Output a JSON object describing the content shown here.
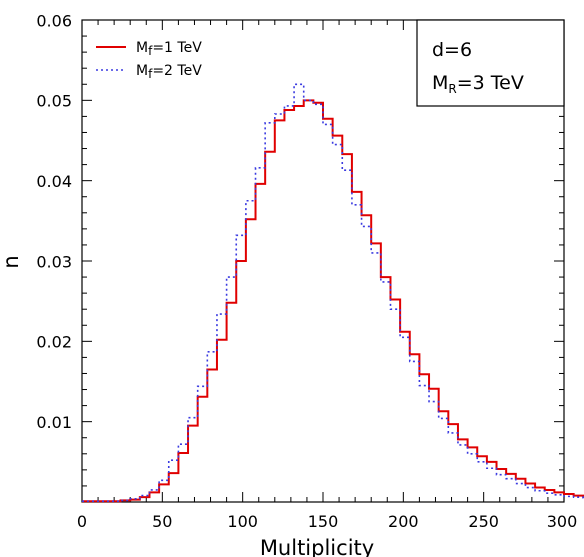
{
  "chart_data": {
    "type": "step-line",
    "xlabel": "Multiplicity",
    "ylabel": "n",
    "xlim": [
      0,
      300
    ],
    "ylim": [
      0,
      0.06
    ],
    "x_ticks": [
      "0",
      "50",
      "100",
      "150",
      "200",
      "250",
      "300"
    ],
    "y_ticks": [
      "0.01",
      "0.02",
      "0.03",
      "0.04",
      "0.05",
      "0.06"
    ],
    "bin_width": 6,
    "bin_edges_start": 0,
    "legend_position": "top-left",
    "info_box": {
      "position": "top-right",
      "line1": "d=6",
      "line2_main": "M",
      "line2_sub": "R",
      "line2_rest": "=3 TeV"
    },
    "series": [
      {
        "name": "Mf=1 TeV",
        "legend_main": "M",
        "legend_sub": "f",
        "legend_rest": "=1 TeV",
        "color": "#e00000",
        "style": "solid",
        "values": [
          0.0001,
          0.0001,
          0.0001,
          0.0001,
          0.0002,
          0.0003,
          0.0006,
          0.0012,
          0.0022,
          0.0036,
          0.0061,
          0.0095,
          0.0131,
          0.0165,
          0.0202,
          0.0248,
          0.03,
          0.0352,
          0.0396,
          0.0436,
          0.0475,
          0.0488,
          0.0493,
          0.05,
          0.0497,
          0.0477,
          0.0456,
          0.0433,
          0.0386,
          0.0357,
          0.0322,
          0.028,
          0.0252,
          0.0212,
          0.0184,
          0.0159,
          0.0141,
          0.0113,
          0.0097,
          0.0078,
          0.0068,
          0.0057,
          0.005,
          0.0041,
          0.0035,
          0.0029,
          0.0023,
          0.0018,
          0.0015,
          0.0012,
          0.001,
          0.0008,
          0.0007,
          0.0006,
          0.0005,
          0.0004,
          0.0003,
          0.0003,
          0.0002,
          0.0002
        ]
      },
      {
        "name": "Mf=2 TeV",
        "legend_main": "M",
        "legend_sub": "f",
        "legend_rest": "=2 TeV",
        "color": "#3a3ae0",
        "style": "dotted",
        "values": [
          0.0001,
          0.0001,
          0.0001,
          0.0001,
          0.0002,
          0.0004,
          0.0008,
          0.0015,
          0.0027,
          0.0052,
          0.0072,
          0.0105,
          0.0144,
          0.0187,
          0.0234,
          0.028,
          0.0332,
          0.0375,
          0.0416,
          0.0472,
          0.0483,
          0.0493,
          0.052,
          0.05,
          0.0495,
          0.047,
          0.0445,
          0.0413,
          0.037,
          0.0343,
          0.031,
          0.0274,
          0.024,
          0.0205,
          0.0175,
          0.0145,
          0.0125,
          0.0104,
          0.0086,
          0.0071,
          0.006,
          0.005,
          0.0042,
          0.0034,
          0.0029,
          0.0023,
          0.0018,
          0.0014,
          0.0011,
          0.0009,
          0.0007,
          0.0006,
          0.0005,
          0.0004,
          0.0003,
          0.0003,
          0.0002,
          0.0002,
          0.0001,
          0.0001
        ]
      }
    ]
  }
}
